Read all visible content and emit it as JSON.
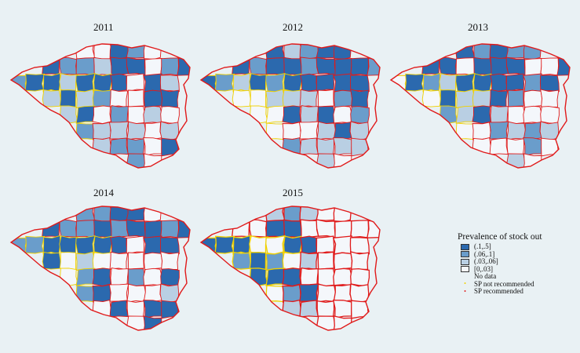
{
  "maps": [
    {
      "year": "2011",
      "variant": 0
    },
    {
      "year": "2012",
      "variant": 1
    },
    {
      "year": "2013",
      "variant": 2
    },
    {
      "year": "2014",
      "variant": 3
    },
    {
      "year": "2015",
      "variant": 4
    }
  ],
  "legend": {
    "title": "Prevalence of stock out",
    "classes": [
      {
        "label": "(.1,.5]",
        "color": "#2b69ae"
      },
      {
        "label": "(.06,.1]",
        "color": "#6a9dcb"
      },
      {
        "label": "(.03,.06]",
        "color": "#b9cfe3"
      },
      {
        "label": "[0,.03]",
        "color": "#f4f7fb"
      },
      {
        "label": "No data",
        "color": null
      }
    ],
    "markers": [
      {
        "label": "SP not recommended",
        "color": "#f2d200",
        "symbol": "•"
      },
      {
        "label": "SP recommended",
        "color": "#e02020",
        "symbol": "•"
      }
    ]
  },
  "colors": {
    "background": "#e9f1f4",
    "sp_recommended_border": "#e01a1a",
    "sp_not_recommended_border": "#f0d000"
  }
}
